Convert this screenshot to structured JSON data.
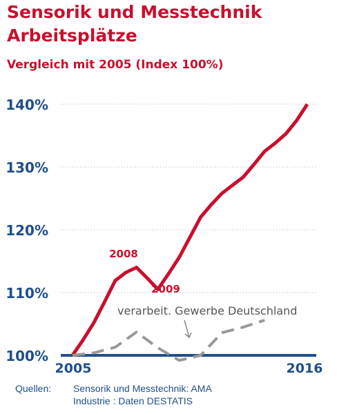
{
  "chart_data": {
    "type": "line",
    "title_line1": "Sensorik und Messtechnik",
    "title_line2": "Arbeitsplätze",
    "subtitle": "Vergleich mit 2005 (Index 100%)",
    "x_range": [
      2005,
      2016
    ],
    "x_tick_labels": [
      "2005",
      "2016"
    ],
    "ylim": [
      100,
      143
    ],
    "y_ticks": [
      100,
      110,
      120,
      130,
      140
    ],
    "y_tick_labels": [
      "100%",
      "110%",
      "120%",
      "130%",
      "140%"
    ],
    "grid": "dotted horizontal",
    "colors": {
      "sensorik": "#c8102e",
      "industrie": "#999999",
      "axis": "#1f4e8c"
    },
    "series": [
      {
        "style": "solid",
        "x": [
          2005,
          2005.5,
          2006,
          2006.5,
          2007,
          2007.5,
          2008,
          2008.5,
          2009,
          2009.5,
          2010,
          2010.5,
          2011,
          2011.5,
          2012,
          2012.5,
          2013,
          2013.5,
          2014,
          2014.5,
          2015,
          2015.5,
          2016
        ],
        "values": [
          100,
          102.5,
          105.2,
          108.5,
          111.9,
          113.2,
          114.0,
          112.3,
          110.5,
          113.0,
          115.6,
          118.8,
          122.0,
          124.0,
          125.8,
          127.1,
          128.4,
          130.4,
          132.5,
          133.8,
          135.3,
          137.4,
          140.0
        ]
      },
      {
        "style": "dashed",
        "x": [
          2005,
          2006,
          2007,
          2008,
          2009,
          2010,
          2011,
          2012,
          2013,
          2014
        ],
        "values": [
          100,
          100.4,
          101.3,
          103.7,
          101.2,
          99.2,
          100.0,
          103.6,
          104.5,
          105.6
        ]
      }
    ],
    "annotations": {
      "year_2008": "2008",
      "year_2009": "2009",
      "industrie_label": "verarbeit. Gewerbe Deutschland"
    }
  },
  "sources": {
    "label": "Quellen:",
    "line1": "Sensorik und Messtechnik: AMA",
    "line2": "Industrie : Daten DESTATIS"
  }
}
